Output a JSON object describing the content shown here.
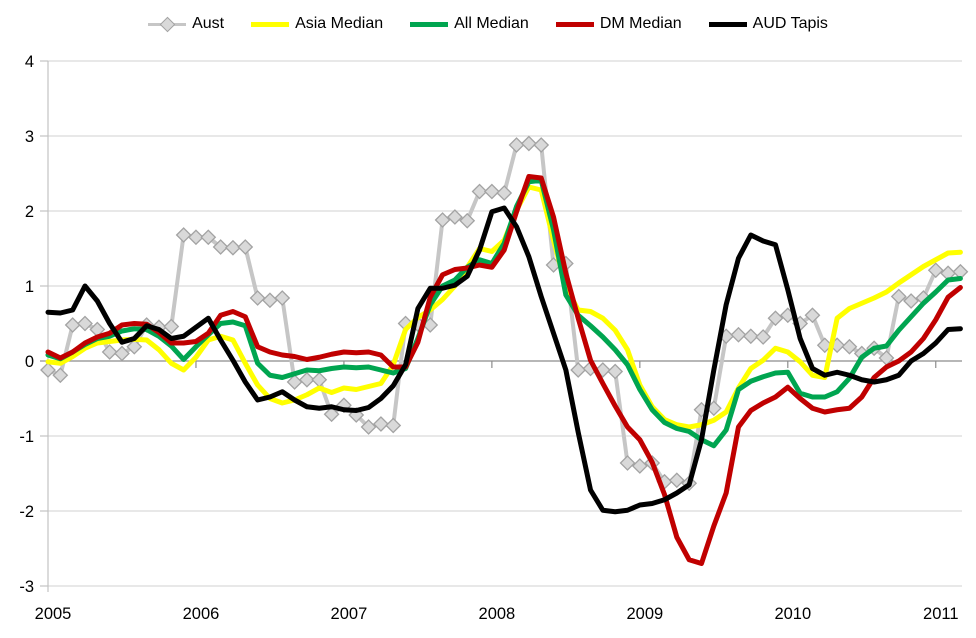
{
  "chart_data": {
    "type": "line",
    "title": "",
    "xlabel": "",
    "ylabel": "",
    "ylim": [
      -3,
      4
    ],
    "y_ticks": [
      4,
      3,
      2,
      1,
      0,
      -1,
      -2,
      -3
    ],
    "x_tick_labels": [
      "2005",
      "2006",
      "2007",
      "2008",
      "2009",
      "2010",
      "2011"
    ],
    "x_frequency": "monthly",
    "x_range": "Jan 2005 - Mar 2011",
    "legend_position": "top",
    "grid": true,
    "grid_color": "#D9D9D9",
    "zero_line_color": "#8C8C8C",
    "axis_color": "#C3C3C3",
    "series": [
      {
        "name": "Aust",
        "color": "#C6C6C6",
        "marker": "diamond",
        "marker_fill": "#D9D9D9",
        "marker_stroke": "#A3A3A3",
        "values": [
          -0.12,
          -0.19,
          0.48,
          0.5,
          0.42,
          0.12,
          0.1,
          0.19,
          0.48,
          0.45,
          0.46,
          1.68,
          1.65,
          1.65,
          1.52,
          1.51,
          1.52,
          0.84,
          0.81,
          0.84,
          -0.28,
          -0.25,
          -0.25,
          -0.71,
          -0.59,
          -0.72,
          -0.88,
          -0.84,
          -0.86,
          0.5,
          0.49,
          0.48,
          1.88,
          1.92,
          1.87,
          2.26,
          2.26,
          2.24,
          2.88,
          2.9,
          2.88,
          1.28,
          1.3,
          -0.12,
          -0.1,
          -0.12,
          -0.14,
          -1.36,
          -1.4,
          -1.36,
          -1.61,
          -1.59,
          -1.63,
          -0.65,
          -0.63,
          0.33,
          0.35,
          0.33,
          0.32,
          0.57,
          0.61,
          0.5,
          0.61,
          0.21,
          0.21,
          0.19,
          0.1,
          0.17,
          0.04,
          0.86,
          0.8,
          0.84,
          1.21,
          1.17,
          1.19
        ]
      },
      {
        "name": "Asia Median",
        "color": "#FFFF00",
        "marker": null,
        "values": [
          -0.01,
          -0.03,
          0.06,
          0.17,
          0.24,
          0.26,
          0.28,
          0.29,
          0.28,
          0.15,
          -0.03,
          -0.12,
          0.05,
          0.28,
          0.33,
          0.28,
          -0.03,
          -0.32,
          -0.5,
          -0.56,
          -0.52,
          -0.45,
          -0.36,
          -0.42,
          -0.36,
          -0.38,
          -0.34,
          -0.3,
          -0.05,
          0.42,
          0.58,
          0.68,
          0.82,
          1.0,
          1.25,
          1.5,
          1.46,
          1.61,
          2.01,
          2.32,
          2.28,
          1.61,
          0.99,
          0.68,
          0.66,
          0.57,
          0.41,
          0.15,
          -0.32,
          -0.61,
          -0.78,
          -0.85,
          -0.88,
          -0.85,
          -0.79,
          -0.68,
          -0.36,
          -0.1,
          0.01,
          0.17,
          0.12,
          -0.01,
          -0.19,
          -0.22,
          0.57,
          0.7,
          0.77,
          0.84,
          0.92,
          1.04,
          1.15,
          1.26,
          1.35,
          1.44,
          1.45
        ]
      },
      {
        "name": "All Median",
        "color": "#00A550",
        "marker": null,
        "values": [
          0.08,
          0.03,
          0.12,
          0.22,
          0.3,
          0.33,
          0.4,
          0.43,
          0.42,
          0.33,
          0.2,
          0.02,
          0.19,
          0.35,
          0.5,
          0.52,
          0.47,
          -0.03,
          -0.19,
          -0.22,
          -0.17,
          -0.12,
          -0.13,
          -0.1,
          -0.08,
          -0.09,
          -0.08,
          -0.12,
          -0.16,
          -0.1,
          0.3,
          0.75,
          1.0,
          1.08,
          1.25,
          1.35,
          1.3,
          1.57,
          2.06,
          2.39,
          2.41,
          1.75,
          0.88,
          0.61,
          0.47,
          0.32,
          0.15,
          -0.05,
          -0.38,
          -0.65,
          -0.82,
          -0.9,
          -0.94,
          -1.05,
          -1.13,
          -0.92,
          -0.38,
          -0.27,
          -0.21,
          -0.16,
          -0.15,
          -0.43,
          -0.48,
          -0.48,
          -0.41,
          -0.23,
          0.05,
          0.17,
          0.2,
          0.41,
          0.59,
          0.77,
          0.92,
          1.08,
          1.1
        ]
      },
      {
        "name": "DM Median",
        "color": "#C00000",
        "marker": null,
        "values": [
          0.12,
          0.04,
          0.12,
          0.24,
          0.32,
          0.37,
          0.48,
          0.5,
          0.49,
          0.38,
          0.24,
          0.24,
          0.26,
          0.37,
          0.61,
          0.66,
          0.59,
          0.19,
          0.12,
          0.08,
          0.06,
          0.02,
          0.05,
          0.09,
          0.12,
          0.11,
          0.12,
          0.08,
          -0.08,
          -0.08,
          0.25,
          0.85,
          1.15,
          1.22,
          1.24,
          1.28,
          1.25,
          1.48,
          1.99,
          2.46,
          2.44,
          1.92,
          1.17,
          0.57,
          0.01,
          -0.3,
          -0.6,
          -0.88,
          -1.05,
          -1.35,
          -1.78,
          -2.35,
          -2.65,
          -2.7,
          -2.2,
          -1.76,
          -0.88,
          -0.66,
          -0.56,
          -0.48,
          -0.35,
          -0.5,
          -0.63,
          -0.68,
          -0.65,
          -0.63,
          -0.48,
          -0.22,
          -0.08,
          0.0,
          0.12,
          0.3,
          0.55,
          0.85,
          0.98
        ]
      },
      {
        "name": "AUD Tapis",
        "color": "#000000",
        "marker": null,
        "values": [
          0.65,
          0.64,
          0.68,
          1.0,
          0.8,
          0.5,
          0.25,
          0.3,
          0.47,
          0.42,
          0.3,
          0.33,
          0.45,
          0.57,
          0.28,
          0.01,
          -0.28,
          -0.52,
          -0.48,
          -0.41,
          -0.52,
          -0.61,
          -0.63,
          -0.61,
          -0.65,
          -0.66,
          -0.62,
          -0.5,
          -0.33,
          -0.05,
          0.7,
          0.97,
          0.97,
          1.01,
          1.13,
          1.48,
          1.99,
          2.04,
          1.79,
          1.39,
          0.86,
          0.37,
          -0.12,
          -0.95,
          -1.72,
          -1.99,
          -2.01,
          -1.99,
          -1.92,
          -1.9,
          -1.85,
          -1.76,
          -1.65,
          -1.05,
          -0.12,
          0.75,
          1.37,
          1.68,
          1.6,
          1.55,
          0.95,
          0.3,
          -0.1,
          -0.19,
          -0.15,
          -0.19,
          -0.25,
          -0.28,
          -0.25,
          -0.19,
          0.0,
          0.1,
          0.24,
          0.42,
          0.43
        ]
      }
    ]
  }
}
